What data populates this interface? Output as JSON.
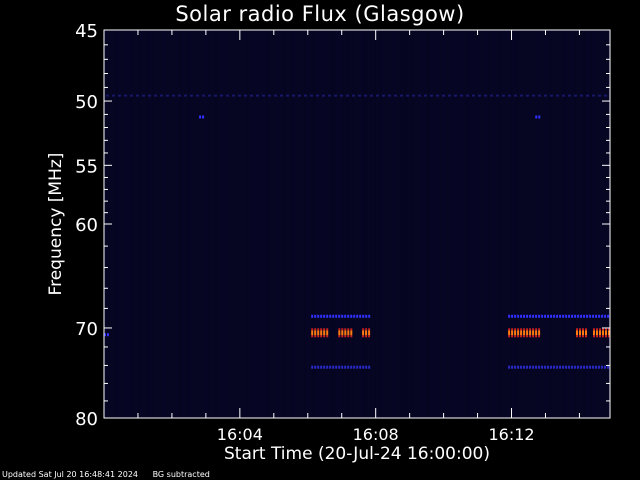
{
  "chart_data": {
    "type": "heatmap",
    "title": "Solar radio Flux (Glasgow)",
    "xlabel": "Start Time (20-Jul-24 16:00:00)",
    "ylabel": "Frequency [MHz]",
    "x_tick_labels": [
      "16:04",
      "16:08",
      "16:12"
    ],
    "x_tick_minutes": [
      4,
      8,
      12
    ],
    "xlim_minutes": [
      0,
      14.9
    ],
    "y_tick_labels": [
      "45",
      "50",
      "55",
      "60",
      "70",
      "80"
    ],
    "y_tick_values": [
      45,
      50,
      55,
      60,
      70,
      80
    ],
    "ylim": [
      45,
      80
    ],
    "y_axis_inverted": true,
    "y_scale": "log",
    "grid": false,
    "colors": {
      "background": "#000000",
      "field": "#050520",
      "axes": "#ffffff",
      "weak": "#2a2ac8",
      "moderate": "#3030ff",
      "strong": "#ff7a10"
    },
    "emission_bursts": [
      {
        "start_min": 6.1,
        "end_min": 6.6,
        "freq_mhz": 70.5,
        "level": "strong"
      },
      {
        "start_min": 6.9,
        "end_min": 7.3,
        "freq_mhz": 70.5,
        "level": "strong"
      },
      {
        "start_min": 7.6,
        "end_min": 7.8,
        "freq_mhz": 70.5,
        "level": "strong"
      },
      {
        "start_min": 11.9,
        "end_min": 12.8,
        "freq_mhz": 70.5,
        "level": "strong"
      },
      {
        "start_min": 13.9,
        "end_min": 14.2,
        "freq_mhz": 70.5,
        "level": "strong"
      },
      {
        "start_min": 14.4,
        "end_min": 14.9,
        "freq_mhz": 70.5,
        "level": "strong"
      },
      {
        "start_min": 6.1,
        "end_min": 7.8,
        "freq_mhz": 68.8,
        "level": "moderate"
      },
      {
        "start_min": 11.9,
        "end_min": 14.9,
        "freq_mhz": 68.8,
        "level": "moderate"
      },
      {
        "start_min": 6.1,
        "end_min": 7.8,
        "freq_mhz": 74.2,
        "level": "weak"
      },
      {
        "start_min": 11.9,
        "end_min": 14.9,
        "freq_mhz": 74.2,
        "level": "weak"
      },
      {
        "start_min": 0.0,
        "end_min": 0.1,
        "freq_mhz": 70.7,
        "level": "moderate"
      },
      {
        "start_min": 2.8,
        "end_min": 2.9,
        "freq_mhz": 51.2,
        "level": "moderate"
      },
      {
        "start_min": 12.7,
        "end_min": 12.8,
        "freq_mhz": 51.2,
        "level": "moderate"
      }
    ],
    "interference_band_mhz": 49.6
  },
  "footer": {
    "updated": "Updated Sat Jul 20 16:48:41 2024",
    "note": "BG subtracted"
  }
}
